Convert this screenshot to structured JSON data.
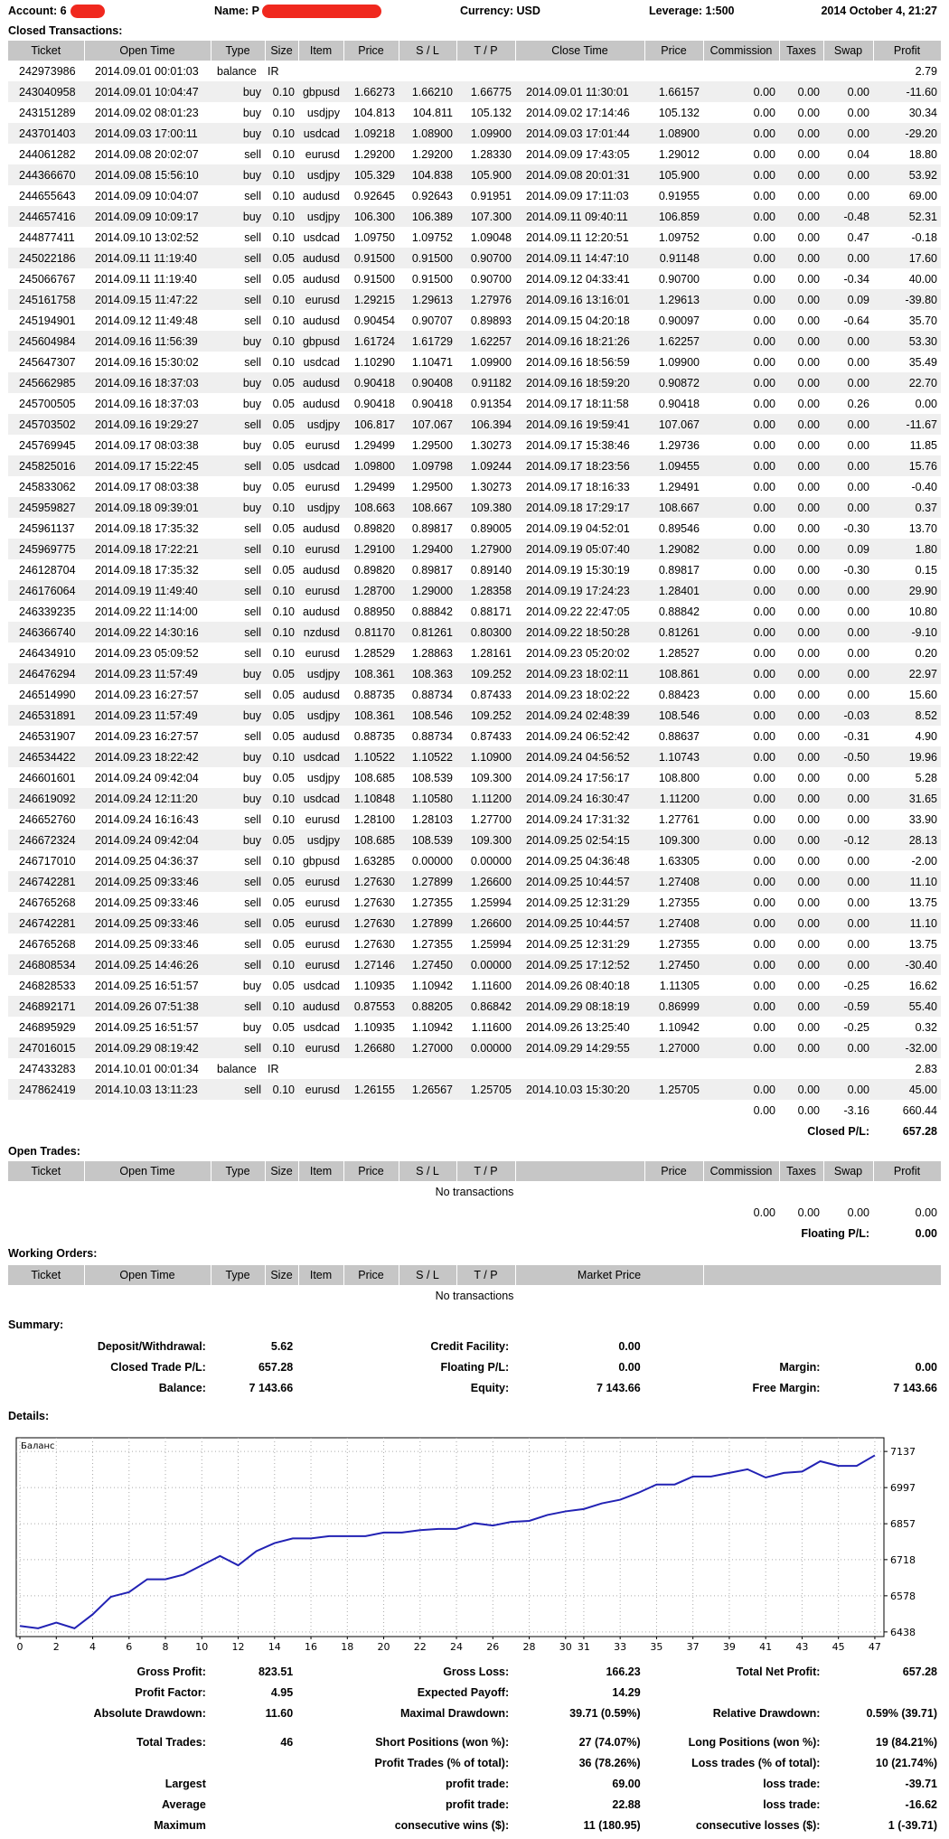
{
  "header": {
    "account": "Account: 6",
    "name": "Name: P",
    "currency": "Currency: USD",
    "leverage": "Leverage: 1:500",
    "date": "2014 October 4, 21:27"
  },
  "closed": {
    "title": "Closed Transactions:",
    "columns": [
      "Ticket",
      "Open Time",
      "Type",
      "Size",
      "Item",
      "Price",
      "S / L",
      "T / P",
      "Close Time",
      "Price",
      "Commission",
      "Taxes",
      "Swap",
      "Profit"
    ],
    "rows": [
      [
        "242973986",
        "2014.09.01 00:01:03",
        "balance",
        "IR",
        "2.79"
      ],
      [
        "243040958",
        "2014.09.01 10:04:47",
        "buy",
        "0.10",
        "gbpusd",
        "1.66273",
        "1.66210",
        "1.66775",
        "2014.09.01 11:30:01",
        "1.66157",
        "0.00",
        "0.00",
        "0.00",
        "-11.60"
      ],
      [
        "243151289",
        "2014.09.02 08:01:23",
        "buy",
        "0.10",
        "usdjpy",
        "104.813",
        "104.811",
        "105.132",
        "2014.09.02 17:14:46",
        "105.132",
        "0.00",
        "0.00",
        "0.00",
        "30.34"
      ],
      [
        "243701403",
        "2014.09.03 17:00:11",
        "buy",
        "0.10",
        "usdcad",
        "1.09218",
        "1.08900",
        "1.09900",
        "2014.09.03 17:01:44",
        "1.08900",
        "0.00",
        "0.00",
        "0.00",
        "-29.20"
      ],
      [
        "244061282",
        "2014.09.08 20:02:07",
        "sell",
        "0.10",
        "eurusd",
        "1.29200",
        "1.29200",
        "1.28330",
        "2014.09.09 17:43:05",
        "1.29012",
        "0.00",
        "0.00",
        "0.04",
        "18.80"
      ],
      [
        "244366670",
        "2014.09.08 15:56:10",
        "buy",
        "0.10",
        "usdjpy",
        "105.329",
        "104.838",
        "105.900",
        "2014.09.08 20:01:31",
        "105.900",
        "0.00",
        "0.00",
        "0.00",
        "53.92"
      ],
      [
        "244655643",
        "2014.09.09 10:04:07",
        "sell",
        "0.10",
        "audusd",
        "0.92645",
        "0.92643",
        "0.91951",
        "2014.09.09 17:11:03",
        "0.91955",
        "0.00",
        "0.00",
        "0.00",
        "69.00"
      ],
      [
        "244657416",
        "2014.09.09 10:09:17",
        "buy",
        "0.10",
        "usdjpy",
        "106.300",
        "106.389",
        "107.300",
        "2014.09.11 09:40:11",
        "106.859",
        "0.00",
        "0.00",
        "-0.48",
        "52.31"
      ],
      [
        "244877411",
        "2014.09.10 13:02:52",
        "sell",
        "0.10",
        "usdcad",
        "1.09750",
        "1.09752",
        "1.09048",
        "2014.09.11 12:20:51",
        "1.09752",
        "0.00",
        "0.00",
        "0.47",
        "-0.18"
      ],
      [
        "245022186",
        "2014.09.11 11:19:40",
        "sell",
        "0.05",
        "audusd",
        "0.91500",
        "0.91500",
        "0.90700",
        "2014.09.11 14:47:10",
        "0.91148",
        "0.00",
        "0.00",
        "0.00",
        "17.60"
      ],
      [
        "245066767",
        "2014.09.11 11:19:40",
        "sell",
        "0.05",
        "audusd",
        "0.91500",
        "0.91500",
        "0.90700",
        "2014.09.12 04:33:41",
        "0.90700",
        "0.00",
        "0.00",
        "-0.34",
        "40.00"
      ],
      [
        "245161758",
        "2014.09.15 11:47:22",
        "sell",
        "0.10",
        "eurusd",
        "1.29215",
        "1.29613",
        "1.27976",
        "2014.09.16 13:16:01",
        "1.29613",
        "0.00",
        "0.00",
        "0.09",
        "-39.80"
      ],
      [
        "245194901",
        "2014.09.12 11:49:48",
        "sell",
        "0.10",
        "audusd",
        "0.90454",
        "0.90707",
        "0.89893",
        "2014.09.15 04:20:18",
        "0.90097",
        "0.00",
        "0.00",
        "-0.64",
        "35.70"
      ],
      [
        "245604984",
        "2014.09.16 11:56:39",
        "buy",
        "0.10",
        "gbpusd",
        "1.61724",
        "1.61729",
        "1.62257",
        "2014.09.16 18:21:26",
        "1.62257",
        "0.00",
        "0.00",
        "0.00",
        "53.30"
      ],
      [
        "245647307",
        "2014.09.16 15:30:02",
        "sell",
        "0.10",
        "usdcad",
        "1.10290",
        "1.10471",
        "1.09900",
        "2014.09.16 18:56:59",
        "1.09900",
        "0.00",
        "0.00",
        "0.00",
        "35.49"
      ],
      [
        "245662985",
        "2014.09.16 18:37:03",
        "buy",
        "0.05",
        "audusd",
        "0.90418",
        "0.90408",
        "0.91182",
        "2014.09.16 18:59:20",
        "0.90872",
        "0.00",
        "0.00",
        "0.00",
        "22.70"
      ],
      [
        "245700505",
        "2014.09.16 18:37:03",
        "buy",
        "0.05",
        "audusd",
        "0.90418",
        "0.90418",
        "0.91354",
        "2014.09.17 18:11:58",
        "0.90418",
        "0.00",
        "0.00",
        "0.26",
        "0.00"
      ],
      [
        "245703502",
        "2014.09.16 19:29:27",
        "sell",
        "0.05",
        "usdjpy",
        "106.817",
        "107.067",
        "106.394",
        "2014.09.16 19:59:41",
        "107.067",
        "0.00",
        "0.00",
        "0.00",
        "-11.67"
      ],
      [
        "245769945",
        "2014.09.17 08:03:38",
        "buy",
        "0.05",
        "eurusd",
        "1.29499",
        "1.29500",
        "1.30273",
        "2014.09.17 15:38:46",
        "1.29736",
        "0.00",
        "0.00",
        "0.00",
        "11.85"
      ],
      [
        "245825016",
        "2014.09.17 15:22:45",
        "sell",
        "0.05",
        "usdcad",
        "1.09800",
        "1.09798",
        "1.09244",
        "2014.09.17 18:23:56",
        "1.09455",
        "0.00",
        "0.00",
        "0.00",
        "15.76"
      ],
      [
        "245833062",
        "2014.09.17 08:03:38",
        "buy",
        "0.05",
        "eurusd",
        "1.29499",
        "1.29500",
        "1.30273",
        "2014.09.17 18:16:33",
        "1.29491",
        "0.00",
        "0.00",
        "0.00",
        "-0.40"
      ],
      [
        "245959827",
        "2014.09.18 09:39:01",
        "buy",
        "0.10",
        "usdjpy",
        "108.663",
        "108.667",
        "109.380",
        "2014.09.18 17:29:17",
        "108.667",
        "0.00",
        "0.00",
        "0.00",
        "0.37"
      ],
      [
        "245961137",
        "2014.09.18 17:35:32",
        "sell",
        "0.05",
        "audusd",
        "0.89820",
        "0.89817",
        "0.89005",
        "2014.09.19 04:52:01",
        "0.89546",
        "0.00",
        "0.00",
        "-0.30",
        "13.70"
      ],
      [
        "245969775",
        "2014.09.18 17:22:21",
        "sell",
        "0.10",
        "eurusd",
        "1.29100",
        "1.29400",
        "1.27900",
        "2014.09.19 05:07:40",
        "1.29082",
        "0.00",
        "0.00",
        "0.09",
        "1.80"
      ],
      [
        "246128704",
        "2014.09.18 17:35:32",
        "sell",
        "0.05",
        "audusd",
        "0.89820",
        "0.89817",
        "0.89140",
        "2014.09.19 15:30:19",
        "0.89817",
        "0.00",
        "0.00",
        "-0.30",
        "0.15"
      ],
      [
        "246176064",
        "2014.09.19 11:49:40",
        "sell",
        "0.10",
        "eurusd",
        "1.28700",
        "1.29000",
        "1.28358",
        "2014.09.19 17:24:23",
        "1.28401",
        "0.00",
        "0.00",
        "0.00",
        "29.90"
      ],
      [
        "246339235",
        "2014.09.22 11:14:00",
        "sell",
        "0.10",
        "audusd",
        "0.88950",
        "0.88842",
        "0.88171",
        "2014.09.22 22:47:05",
        "0.88842",
        "0.00",
        "0.00",
        "0.00",
        "10.80"
      ],
      [
        "246366740",
        "2014.09.22 14:30:16",
        "sell",
        "0.10",
        "nzdusd",
        "0.81170",
        "0.81261",
        "0.80300",
        "2014.09.22 18:50:28",
        "0.81261",
        "0.00",
        "0.00",
        "0.00",
        "-9.10"
      ],
      [
        "246434910",
        "2014.09.23 05:09:52",
        "sell",
        "0.10",
        "eurusd",
        "1.28529",
        "1.28863",
        "1.28161",
        "2014.09.23 05:20:02",
        "1.28527",
        "0.00",
        "0.00",
        "0.00",
        "0.20"
      ],
      [
        "246476294",
        "2014.09.23 11:57:49",
        "buy",
        "0.05",
        "usdjpy",
        "108.361",
        "108.363",
        "109.252",
        "2014.09.23 18:02:11",
        "108.861",
        "0.00",
        "0.00",
        "0.00",
        "22.97"
      ],
      [
        "246514990",
        "2014.09.23 16:27:57",
        "sell",
        "0.05",
        "audusd",
        "0.88735",
        "0.88734",
        "0.87433",
        "2014.09.23 18:02:22",
        "0.88423",
        "0.00",
        "0.00",
        "0.00",
        "15.60"
      ],
      [
        "246531891",
        "2014.09.23 11:57:49",
        "buy",
        "0.05",
        "usdjpy",
        "108.361",
        "108.546",
        "109.252",
        "2014.09.24 02:48:39",
        "108.546",
        "0.00",
        "0.00",
        "-0.03",
        "8.52"
      ],
      [
        "246531907",
        "2014.09.23 16:27:57",
        "sell",
        "0.05",
        "audusd",
        "0.88735",
        "0.88734",
        "0.87433",
        "2014.09.24 06:52:42",
        "0.88637",
        "0.00",
        "0.00",
        "-0.31",
        "4.90"
      ],
      [
        "246534422",
        "2014.09.23 18:22:42",
        "buy",
        "0.10",
        "usdcad",
        "1.10522",
        "1.10522",
        "1.10900",
        "2014.09.24 04:56:52",
        "1.10743",
        "0.00",
        "0.00",
        "-0.50",
        "19.96"
      ],
      [
        "246601601",
        "2014.09.24 09:42:04",
        "buy",
        "0.05",
        "usdjpy",
        "108.685",
        "108.539",
        "109.300",
        "2014.09.24 17:56:17",
        "108.800",
        "0.00",
        "0.00",
        "0.00",
        "5.28"
      ],
      [
        "246619092",
        "2014.09.24 12:11:20",
        "buy",
        "0.10",
        "usdcad",
        "1.10848",
        "1.10580",
        "1.11200",
        "2014.09.24 16:30:47",
        "1.11200",
        "0.00",
        "0.00",
        "0.00",
        "31.65"
      ],
      [
        "246652760",
        "2014.09.24 16:16:43",
        "sell",
        "0.10",
        "eurusd",
        "1.28100",
        "1.28103",
        "1.27700",
        "2014.09.24 17:31:32",
        "1.27761",
        "0.00",
        "0.00",
        "0.00",
        "33.90"
      ],
      [
        "246672324",
        "2014.09.24 09:42:04",
        "buy",
        "0.05",
        "usdjpy",
        "108.685",
        "108.539",
        "109.300",
        "2014.09.25 02:54:15",
        "109.300",
        "0.00",
        "0.00",
        "-0.12",
        "28.13"
      ],
      [
        "246717010",
        "2014.09.25 04:36:37",
        "sell",
        "0.10",
        "gbpusd",
        "1.63285",
        "0.00000",
        "0.00000",
        "2014.09.25 04:36:48",
        "1.63305",
        "0.00",
        "0.00",
        "0.00",
        "-2.00"
      ],
      [
        "246742281",
        "2014.09.25 09:33:46",
        "sell",
        "0.05",
        "eurusd",
        "1.27630",
        "1.27899",
        "1.26600",
        "2014.09.25 10:44:57",
        "1.27408",
        "0.00",
        "0.00",
        "0.00",
        "11.10"
      ],
      [
        "246765268",
        "2014.09.25 09:33:46",
        "sell",
        "0.05",
        "eurusd",
        "1.27630",
        "1.27355",
        "1.25994",
        "2014.09.25 12:31:29",
        "1.27355",
        "0.00",
        "0.00",
        "0.00",
        "13.75"
      ],
      [
        "246742281",
        "2014.09.25 09:33:46",
        "sell",
        "0.05",
        "eurusd",
        "1.27630",
        "1.27899",
        "1.26600",
        "2014.09.25 10:44:57",
        "1.27408",
        "0.00",
        "0.00",
        "0.00",
        "11.10"
      ],
      [
        "246765268",
        "2014.09.25 09:33:46",
        "sell",
        "0.05",
        "eurusd",
        "1.27630",
        "1.27355",
        "1.25994",
        "2014.09.25 12:31:29",
        "1.27355",
        "0.00",
        "0.00",
        "0.00",
        "13.75"
      ],
      [
        "246808534",
        "2014.09.25 14:46:26",
        "sell",
        "0.10",
        "eurusd",
        "1.27146",
        "1.27450",
        "0.00000",
        "2014.09.25 17:12:52",
        "1.27450",
        "0.00",
        "0.00",
        "0.00",
        "-30.40"
      ],
      [
        "246828533",
        "2014.09.25 16:51:57",
        "buy",
        "0.05",
        "usdcad",
        "1.10935",
        "1.10942",
        "1.11600",
        "2014.09.26 08:40:18",
        "1.11305",
        "0.00",
        "0.00",
        "-0.25",
        "16.62"
      ],
      [
        "246892171",
        "2014.09.26 07:51:38",
        "sell",
        "0.10",
        "audusd",
        "0.87553",
        "0.88205",
        "0.86842",
        "2014.09.29 08:18:19",
        "0.86999",
        "0.00",
        "0.00",
        "-0.59",
        "55.40"
      ],
      [
        "246895929",
        "2014.09.25 16:51:57",
        "buy",
        "0.05",
        "usdcad",
        "1.10935",
        "1.10942",
        "1.11600",
        "2014.09.26 13:25:40",
        "1.10942",
        "0.00",
        "0.00",
        "-0.25",
        "0.32"
      ],
      [
        "247016015",
        "2014.09.29 08:19:42",
        "sell",
        "0.10",
        "eurusd",
        "1.26680",
        "1.27000",
        "0.00000",
        "2014.09.29 14:29:55",
        "1.27000",
        "0.00",
        "0.00",
        "0.00",
        "-32.00"
      ],
      [
        "247433283",
        "2014.10.01 00:01:34",
        "balance",
        "IR",
        "2.83"
      ],
      [
        "247862419",
        "2014.10.03 13:11:23",
        "sell",
        "0.10",
        "eurusd",
        "1.26155",
        "1.26567",
        "1.25705",
        "2014.10.03 15:30:20",
        "1.25705",
        "0.00",
        "0.00",
        "0.00",
        "45.00"
      ]
    ],
    "totals": [
      "0.00",
      "0.00",
      "-3.16",
      "660.44"
    ],
    "pl_label": "Closed P/L:",
    "pl_value": "657.28"
  },
  "open": {
    "title": "Open Trades:",
    "columns": [
      "Ticket",
      "Open Time",
      "Type",
      "Size",
      "Item",
      "Price",
      "S / L",
      "T / P",
      "Price",
      "Commission",
      "Taxes",
      "Swap",
      "Profit"
    ],
    "empty": "No transactions",
    "totals": [
      "0.00",
      "0.00",
      "0.00",
      "0.00"
    ],
    "pl_label": "Floating P/L:",
    "pl_value": "0.00"
  },
  "working": {
    "title": "Working Orders:",
    "columns": [
      "Ticket",
      "Open Time",
      "Type",
      "Size",
      "Item",
      "Price",
      "S / L",
      "T / P",
      "Market Price"
    ],
    "empty": "No transactions"
  },
  "summary": {
    "title": "Summary:",
    "rows": [
      {
        "left": [
          "Deposit/Withdrawal:",
          "5.62"
        ],
        "mid": [
          "Credit Facility:",
          "0.00"
        ]
      },
      {
        "left": [
          "Closed Trade P/L:",
          "657.28"
        ],
        "mid": [
          "Floating P/L:",
          "0.00"
        ],
        "right": [
          "Margin:",
          "0.00"
        ]
      },
      {
        "left": [
          "Balance:",
          "7 143.66"
        ],
        "mid": [
          "Equity:",
          "7 143.66"
        ],
        "right": [
          "Free Margin:",
          "7 143.66"
        ]
      }
    ]
  },
  "details": {
    "title": "Details:"
  },
  "chart_data": {
    "type": "line",
    "title": "Баланс",
    "color": "#2222b4",
    "grid": true,
    "x": [
      0,
      1,
      2,
      3,
      4,
      5,
      6,
      7,
      8,
      9,
      10,
      11,
      12,
      13,
      14,
      15,
      16,
      17,
      18,
      19,
      20,
      21,
      22,
      23,
      24,
      25,
      26,
      27,
      28,
      29,
      30,
      31,
      32,
      33,
      34,
      35,
      36,
      37,
      38,
      39,
      40,
      41,
      42,
      43,
      44,
      45,
      46,
      47
    ],
    "values": [
      6461,
      6452,
      6474,
      6452,
      6506,
      6574,
      6592,
      6642,
      6642,
      6660,
      6696,
      6732,
      6696,
      6751,
      6782,
      6800,
      6800,
      6809,
      6809,
      6809,
      6823,
      6823,
      6832,
      6837,
      6837,
      6859,
      6850,
      6864,
      6868,
      6891,
      6905,
      6914,
      6936,
      6950,
      6977,
      7009,
      7009,
      7040,
      7040,
      7054,
      7068,
      7036,
      7054,
      7059,
      7099,
      7081,
      7081,
      7122
    ],
    "xlim": [
      -0.2,
      47.5
    ],
    "xticks": [
      0,
      2,
      4,
      6,
      8,
      10,
      12,
      14,
      16,
      18,
      20,
      22,
      24,
      26,
      28,
      30,
      31,
      33,
      35,
      37,
      39,
      41,
      43,
      45,
      47
    ],
    "ylim": [
      6420,
      7190
    ],
    "yticks": [
      7137,
      6997,
      6857,
      6718,
      6578,
      6438
    ]
  },
  "stats": {
    "rows": [
      {
        "left": [
          "Gross Profit:",
          "823.51"
        ],
        "mid": [
          "Gross Loss:",
          "166.23"
        ],
        "right": [
          "Total Net Profit:",
          "657.28"
        ]
      },
      {
        "left": [
          "Profit Factor:",
          "4.95"
        ],
        "mid": [
          "Expected Payoff:",
          "14.29"
        ]
      },
      {
        "left": [
          "Absolute Drawdown:",
          "11.60"
        ],
        "mid": [
          "Maximal Drawdown:",
          "39.71 (0.59%)"
        ],
        "right": [
          "Relative Drawdown:",
          "0.59% (39.71)"
        ]
      },
      {
        "left": [
          "Total Trades:",
          "46"
        ],
        "mid": [
          "Short Positions (won %):",
          "27 (74.07%)"
        ],
        "right": [
          "Long Positions (won %):",
          "19 (84.21%)"
        ]
      },
      {
        "mid": [
          "Profit Trades (% of total):",
          "36 (78.26%)"
        ],
        "right": [
          "Loss trades (% of total):",
          "10 (21.74%)"
        ]
      },
      {
        "left": [
          "Largest"
        ],
        "mid": [
          "profit trade:",
          "69.00"
        ],
        "right": [
          "loss trade:",
          "-39.71"
        ]
      },
      {
        "left": [
          "Average"
        ],
        "mid": [
          "profit trade:",
          "22.88"
        ],
        "right": [
          "loss trade:",
          "-16.62"
        ]
      },
      {
        "left": [
          "Maximum"
        ],
        "mid": [
          "consecutive wins ($):",
          "11 (180.95)"
        ],
        "right": [
          "consecutive losses ($):",
          "1 (-39.71)"
        ]
      }
    ]
  }
}
